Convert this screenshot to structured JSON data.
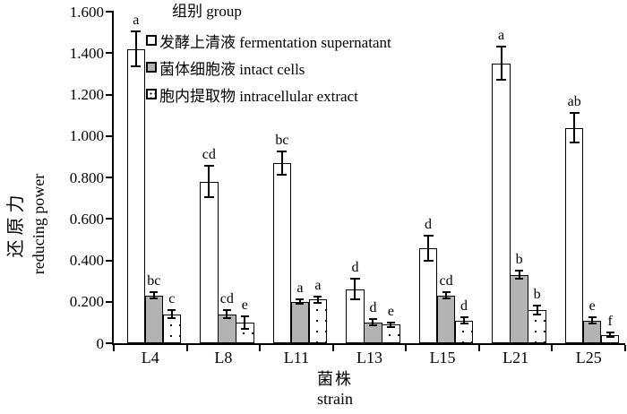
{
  "chart_data": {
    "type": "bar",
    "title": "",
    "categories": [
      "L4",
      "L8",
      "L11",
      "L13",
      "L15",
      "L21",
      "L25"
    ],
    "series": [
      {
        "name": "发酵上清液 fermentation supernatant",
        "fill": "white",
        "values": [
          1.42,
          0.78,
          0.87,
          0.26,
          0.46,
          1.35,
          1.04
        ],
        "errors": [
          0.085,
          0.075,
          0.055,
          0.05,
          0.06,
          0.08,
          0.07
        ],
        "letters": [
          "a",
          "cd",
          "bc",
          "d",
          "d",
          "a",
          "ab"
        ]
      },
      {
        "name": "菌体细胞液 intact cells",
        "fill": "gray",
        "values": [
          0.23,
          0.14,
          0.2,
          0.1,
          0.23,
          0.33,
          0.11
        ],
        "errors": [
          0.015,
          0.02,
          0.01,
          0.015,
          0.015,
          0.02,
          0.015
        ],
        "letters": [
          "bc",
          "cd",
          "a",
          "d",
          "cd",
          "b",
          "e"
        ]
      },
      {
        "name": "胞内提取物 intracellular extract",
        "fill": "dotted",
        "values": [
          0.14,
          0.1,
          0.21,
          0.09,
          0.11,
          0.16,
          0.04
        ],
        "errors": [
          0.02,
          0.03,
          0.015,
          0.01,
          0.015,
          0.02,
          0.01
        ],
        "letters": [
          "c",
          "e",
          "a",
          "e",
          "d",
          "b",
          "f"
        ]
      }
    ],
    "legend_title": "组别 group",
    "ylabel_cn": "还原力",
    "ylabel_en": "reducing power",
    "xlabel_cn": "菌株",
    "xlabel_en": "strain",
    "yticks": [
      "1.600",
      "1.400",
      "1.200",
      "1.000",
      "0.800",
      "0.600",
      "0.400",
      "0.200",
      "0"
    ],
    "ylim": [
      0,
      1.6
    ],
    "grid": false,
    "legend_position": "top-center-inside",
    "colors": {
      "bar_white": "#ffffff",
      "bar_gray": "#b3b3b3",
      "axis": "#000000",
      "background": "#ffffff"
    }
  }
}
